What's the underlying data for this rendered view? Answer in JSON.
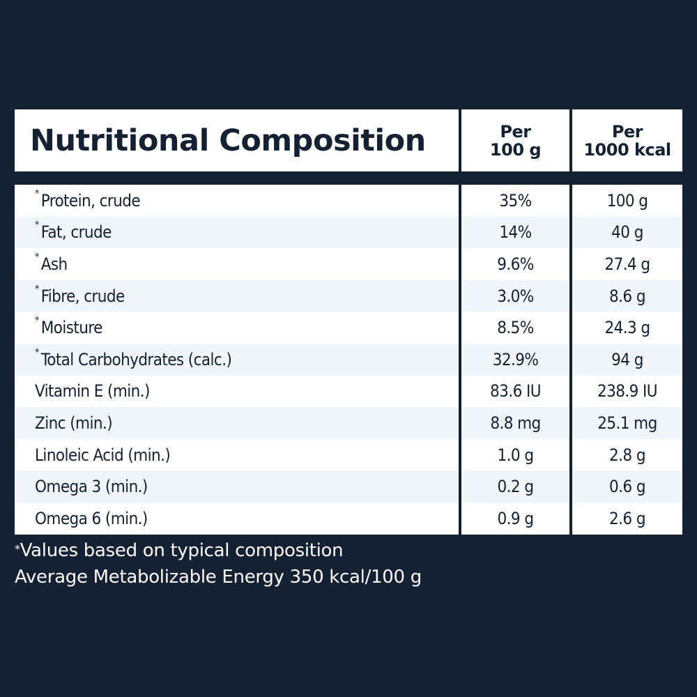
{
  "header": {
    "title": "Nutritional Composition",
    "col_a": "Per\n100 g",
    "col_b": "Per\n1000 kcal"
  },
  "rows": [
    {
      "marker": "*",
      "label": "Protein, crude",
      "per_100g": "35%",
      "per_1000kcal": "100 g"
    },
    {
      "marker": "*",
      "label": "Fat, crude",
      "per_100g": "14%",
      "per_1000kcal": "40 g"
    },
    {
      "marker": "*",
      "label": "Ash",
      "per_100g": "9.6%",
      "per_1000kcal": "27.4 g"
    },
    {
      "marker": "*",
      "label": "Fibre, crude",
      "per_100g": "3.0%",
      "per_1000kcal": "8.6 g"
    },
    {
      "marker": "*",
      "label": "Moisture",
      "per_100g": "8.5%",
      "per_1000kcal": "24.3 g"
    },
    {
      "marker": "*",
      "label": "Total Carbohydrates (calc.)",
      "per_100g": "32.9%",
      "per_1000kcal": "94 g"
    },
    {
      "marker": "",
      "label": "Vitamin E (min.)",
      "per_100g": "83.6 IU",
      "per_1000kcal": "238.9 IU"
    },
    {
      "marker": "",
      "label": "Zinc (min.)",
      "per_100g": "8.8 mg",
      "per_1000kcal": "25.1 mg"
    },
    {
      "marker": "",
      "label": "Linoleic Acid (min.)",
      "per_100g": "1.0 g",
      "per_1000kcal": "2.8 g"
    },
    {
      "marker": "",
      "label": "Omega 3 (min.)",
      "per_100g": "0.2 g",
      "per_1000kcal": "0.6 g"
    },
    {
      "marker": "",
      "label": "Omega 6 (min.)",
      "per_100g": "0.9 g",
      "per_1000kcal": "2.6 g"
    }
  ],
  "footnotes": {
    "marker": "*",
    "line1": "Values based on typical composition",
    "line2": "Average Metabolizable Energy 350 kcal/100 g"
  },
  "colors": {
    "background": "#132133",
    "row_white": "#ffffff",
    "row_alt": "#f1f6fb",
    "text_dark": "#132133"
  }
}
